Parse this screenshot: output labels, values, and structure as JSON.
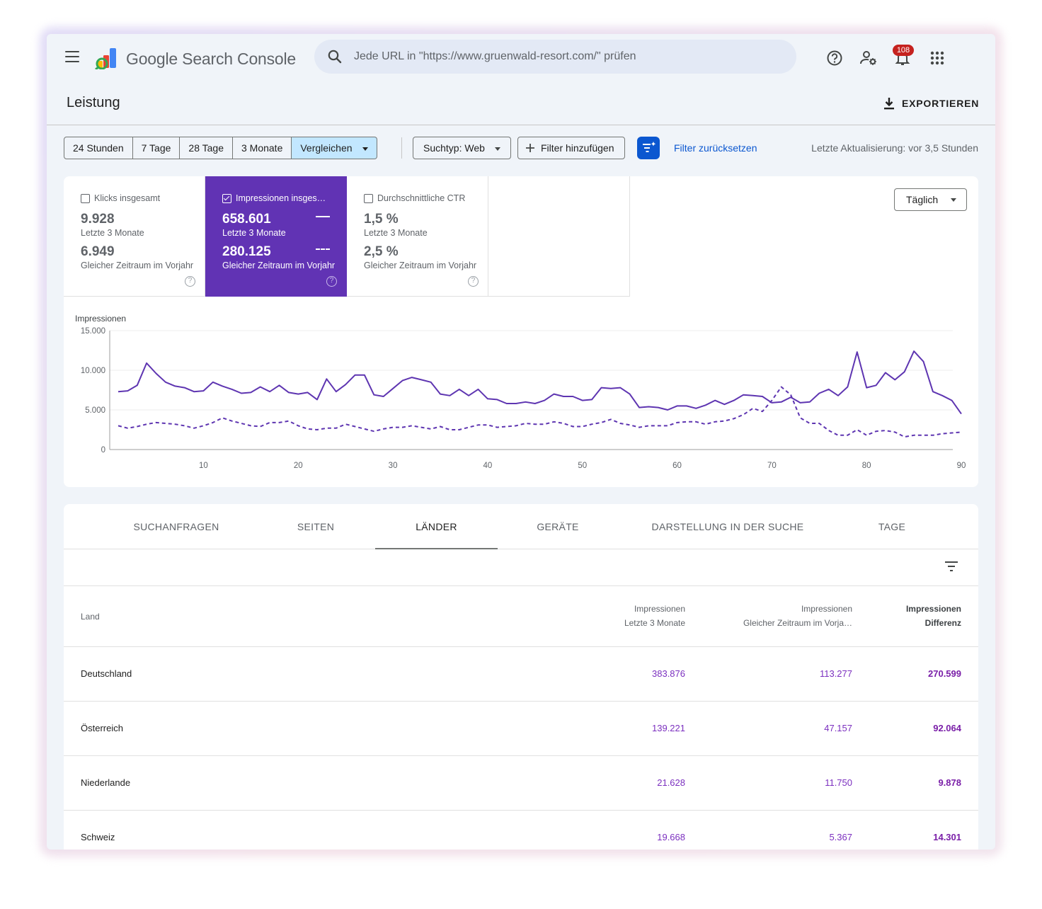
{
  "app": {
    "brand_prefix": "Google",
    "brand_suffix": "Search Console",
    "search_placeholder": "Jede URL in \"https://www.gruenwald-resort.com/\" prüfen",
    "notification_count": "108",
    "icons": [
      "menu-icon",
      "search-icon",
      "help-icon",
      "manage-users-icon",
      "notifications-icon",
      "apps-icon"
    ]
  },
  "page": {
    "title": "Leistung",
    "export_label": "EXPORTIEREN"
  },
  "filters": {
    "ranges": [
      "24 Stunden",
      "7 Tage",
      "28 Tage",
      "3 Monate"
    ],
    "compare_label": "Vergleichen",
    "search_type": "Suchtyp: Web",
    "add_filter": "Filter hinzufügen",
    "reset": "Filter zurücksetzen",
    "last_update": "Letzte Aktualisierung: vor 3,5 Stunden"
  },
  "metrics": [
    {
      "label": "Klicks insgesamt",
      "value": "9.928",
      "period": "Letzte 3 Monate",
      "compare_value": "6.949",
      "compare_period": "Gleicher Zeitraum im Vorjahr",
      "selected": false
    },
    {
      "label": "Impressionen insges…",
      "value": "658.601",
      "period": "Letzte 3 Monate",
      "compare_value": "280.125",
      "compare_period": "Gleicher Zeitraum im Vorjahr",
      "selected": true
    },
    {
      "label": "Durchschnittliche CTR",
      "value": "1,5 %",
      "period": "Letzte 3 Monate",
      "compare_value": "2,5 %",
      "compare_period": "Gleicher Zeitraum im Vorjahr",
      "selected": false
    }
  ],
  "granularity": "Täglich",
  "chart_data": {
    "type": "line",
    "ylabel": "Impressionen",
    "ylim": [
      0,
      15000
    ],
    "yticks": [
      "0",
      "5.000",
      "10.000",
      "15.000"
    ],
    "xlim": [
      1,
      90
    ],
    "xticks": [
      10,
      20,
      30,
      40,
      50,
      60,
      70,
      80,
      90
    ],
    "grid": true,
    "colors": {
      "series": "#5e35b1"
    },
    "series": [
      {
        "name": "Letzte 3 Monate",
        "style": "solid",
        "values": [
          7300,
          7400,
          8100,
          10900,
          9600,
          8500,
          8000,
          7800,
          7300,
          7400,
          8500,
          8000,
          7600,
          7100,
          7200,
          7900,
          7300,
          8100,
          7200,
          7000,
          7200,
          6300,
          8900,
          7300,
          8200,
          9400,
          9400,
          6900,
          6700,
          7700,
          8700,
          9100,
          8800,
          8500,
          7000,
          6800,
          7600,
          6800,
          7600,
          6400,
          6300,
          5800,
          5800,
          6000,
          5800,
          6200,
          7000,
          6700,
          6700,
          6200,
          6300,
          7800,
          7700,
          7800,
          7000,
          5300,
          5400,
          5300,
          5000,
          5500,
          5500,
          5200,
          5600,
          6200,
          5700,
          6200,
          6900,
          6800,
          6700,
          5900,
          6000,
          6600,
          5900,
          6000,
          7100,
          7600,
          6800,
          7900,
          12300,
          7800,
          8100,
          9700,
          8800,
          9800,
          12400,
          11100,
          7300,
          6800,
          6200,
          4500
        ]
      },
      {
        "name": "Gleicher Zeitraum im Vorjahr",
        "style": "dashed",
        "values": [
          3000,
          2700,
          2900,
          3200,
          3400,
          3300,
          3200,
          3000,
          2700,
          3000,
          3400,
          4000,
          3600,
          3300,
          3000,
          2900,
          3400,
          3400,
          3600,
          3000,
          2600,
          2500,
          2700,
          2700,
          3200,
          2900,
          2600,
          2300,
          2600,
          2800,
          2800,
          3000,
          2800,
          2600,
          2900,
          2500,
          2500,
          2800,
          3100,
          3100,
          2800,
          2900,
          3000,
          3300,
          3200,
          3200,
          3500,
          3300,
          2900,
          2900,
          3200,
          3400,
          3800,
          3300,
          3100,
          2800,
          3000,
          3000,
          3000,
          3400,
          3500,
          3500,
          3200,
          3500,
          3600,
          3900,
          4400,
          5200,
          4800,
          6200,
          7900,
          6900,
          4000,
          3300,
          3300,
          2400,
          1800,
          1800,
          2500,
          1800,
          2300,
          2400,
          2200,
          1600,
          1800,
          1800,
          1800,
          2000,
          2100,
          2200
        ]
      }
    ]
  },
  "tabs": [
    "SUCHANFRAGEN",
    "SEITEN",
    "LÄNDER",
    "GERÄTE",
    "DARSTELLUNG IN DER SUCHE",
    "TAGE"
  ],
  "active_tab": "LÄNDER",
  "table": {
    "col_land": "Land",
    "col1_title": "Impressionen",
    "col1_sub": "Letzte 3 Monate",
    "col2_title": "Impressionen",
    "col2_sub": "Gleicher Zeitraum im Vorja…",
    "col3_title": "Impressionen",
    "col3_sub": "Differenz",
    "rows": [
      {
        "land": "Deutschland",
        "current": "383.876",
        "previous": "113.277",
        "diff": "270.599"
      },
      {
        "land": "Österreich",
        "current": "139.221",
        "previous": "47.157",
        "diff": "92.064"
      },
      {
        "land": "Niederlande",
        "current": "21.628",
        "previous": "11.750",
        "diff": "9.878"
      },
      {
        "land": "Schweiz",
        "current": "19.668",
        "previous": "5.367",
        "diff": "14.301"
      }
    ]
  }
}
